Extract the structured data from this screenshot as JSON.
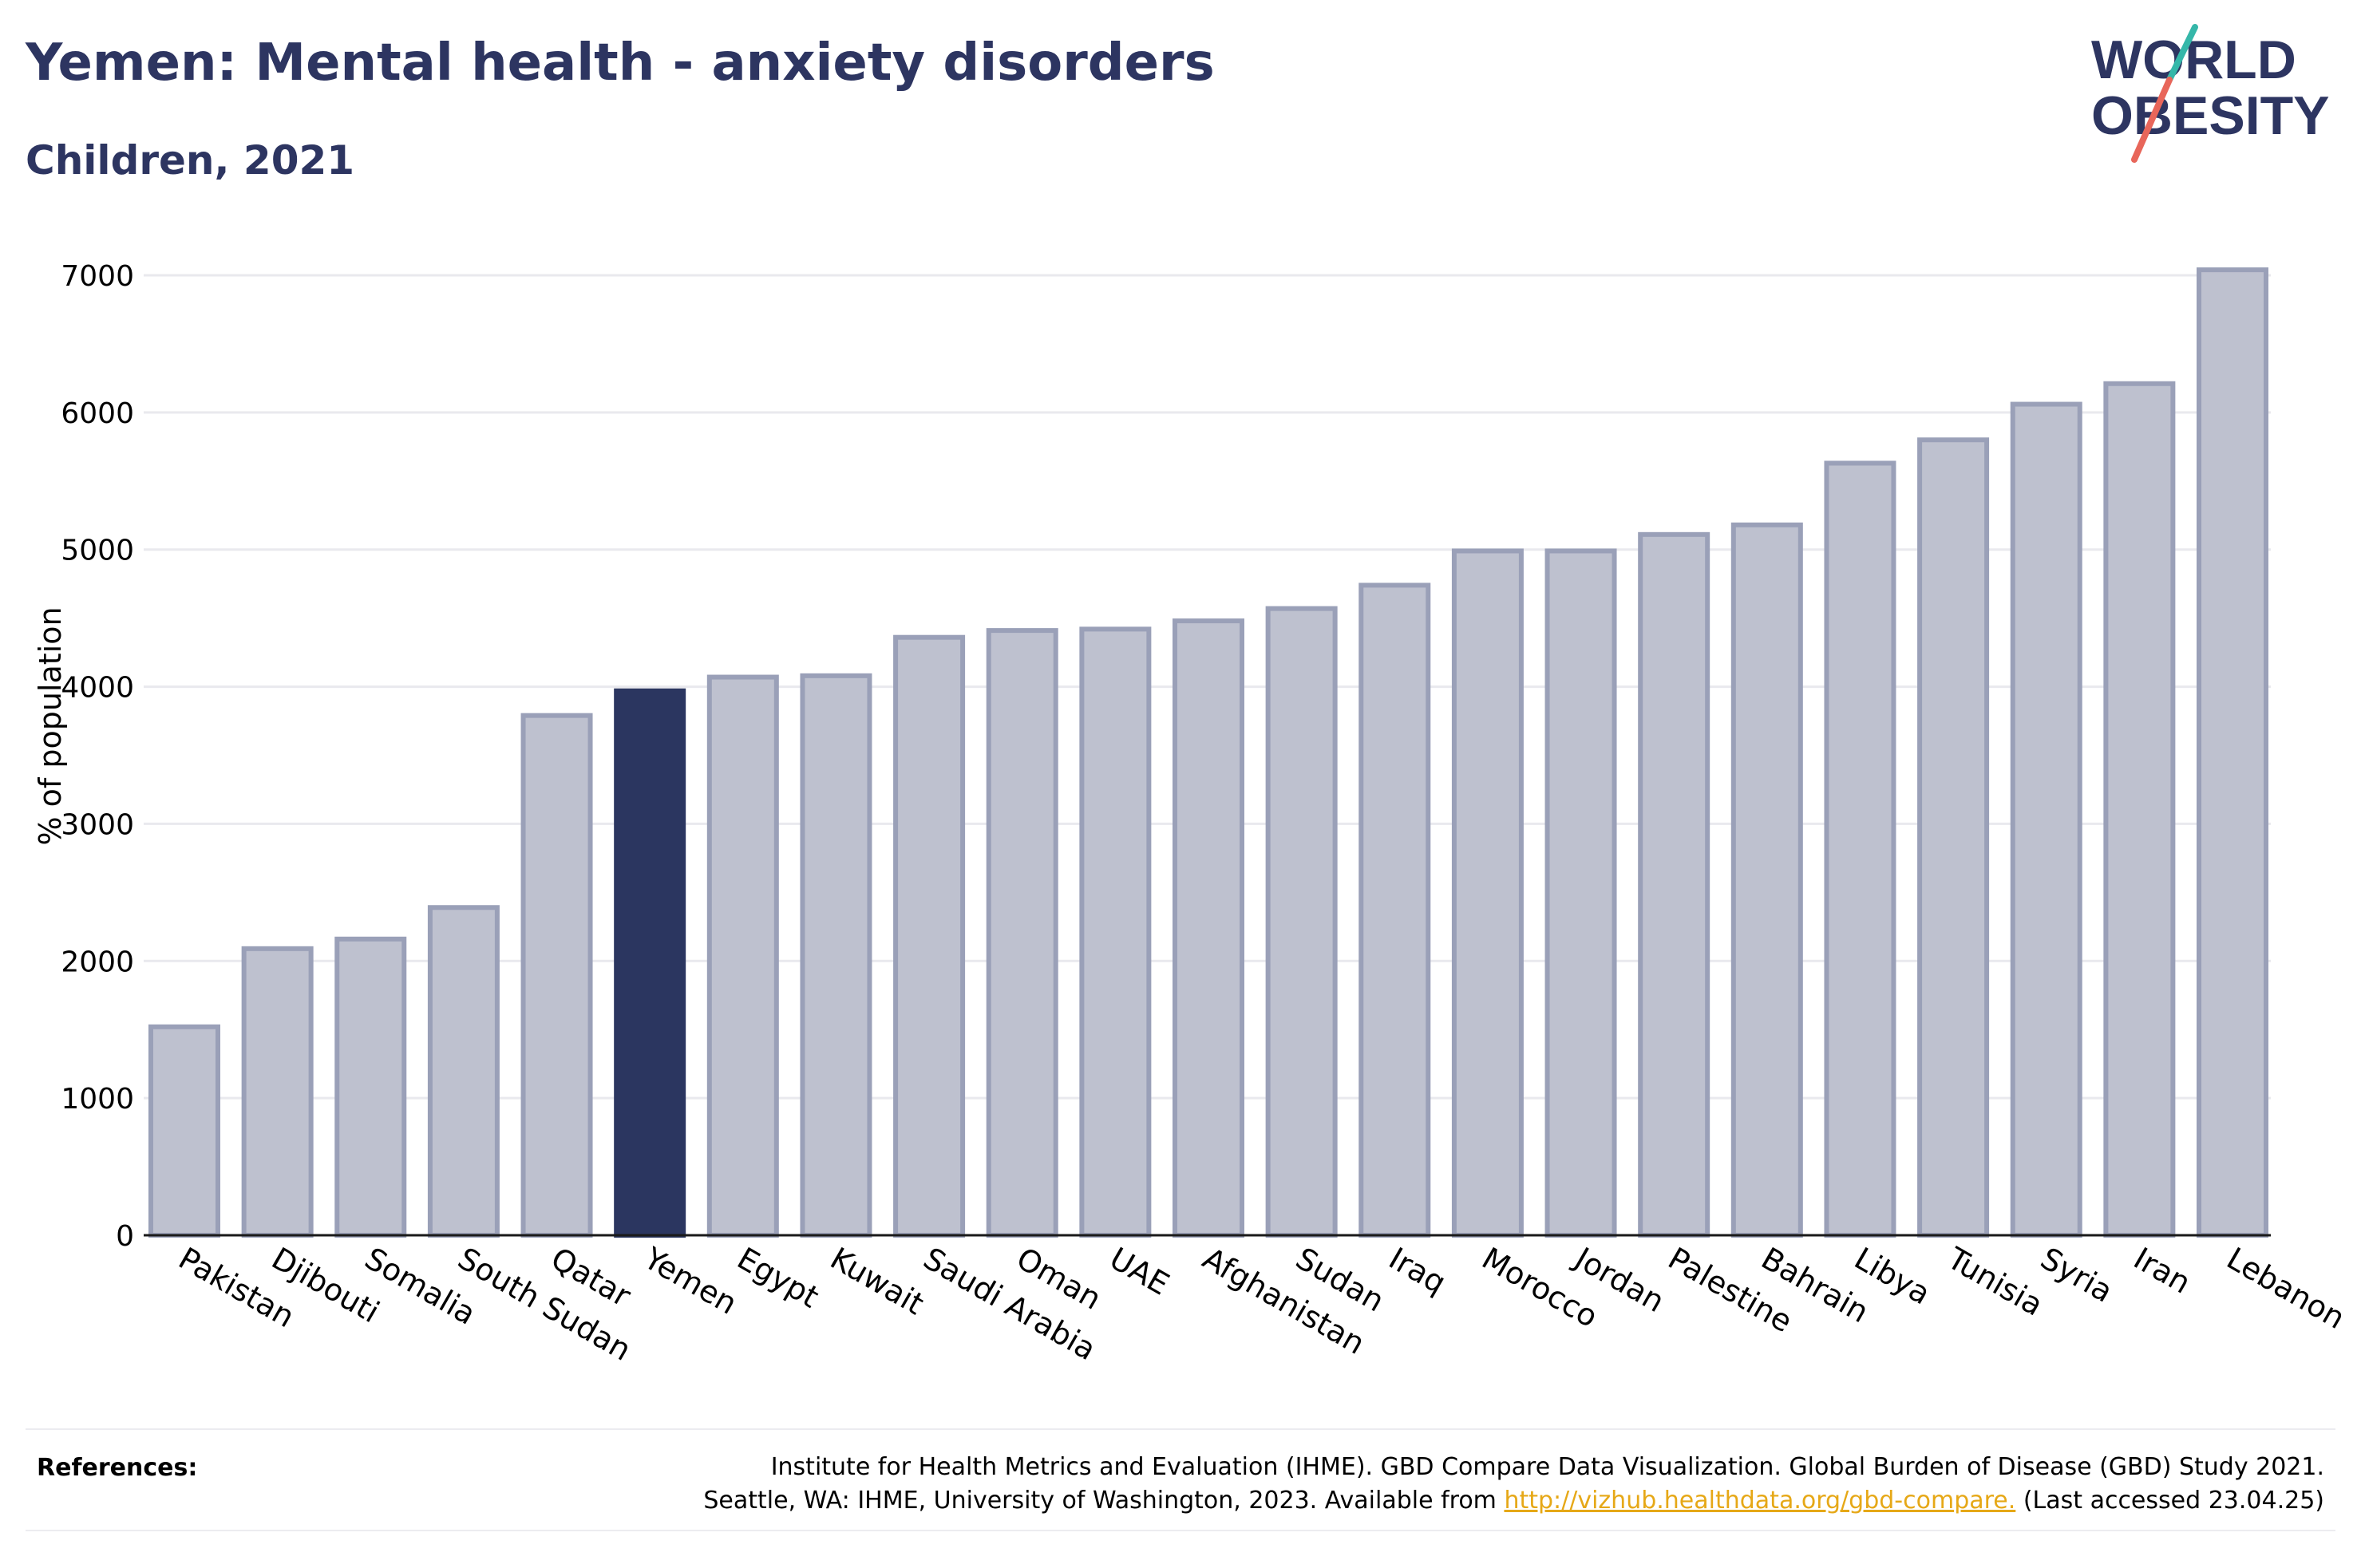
{
  "header": {
    "title": "Yemen: Mental health - anxiety disorders",
    "subtitle": "Children, 2021"
  },
  "logo": {
    "line1": "WORLD",
    "line2": "OBESITY"
  },
  "references": {
    "label": "References:",
    "line1": "Institute for Health Metrics and Evaluation (IHME). GBD Compare Data Visualization. Global Burden of Disease (GBD) Study 2021.",
    "line2_prefix": "Seattle, WA: IHME, University of Washington, 2023. Available from ",
    "link": "http://vizhub.healthdata.org/gbd-compare.",
    "line2_suffix": " (Last accessed 23.04.25)"
  },
  "colors": {
    "highlight": "#2b3660",
    "bar_fill": "#bec1cf",
    "bar_stroke": "#9aa0b8",
    "grid": "#e9e9ee",
    "text": "#2d3561",
    "link": "#e6a817"
  },
  "chart_data": {
    "type": "bar",
    "ylabel": "% of population",
    "ylim": [
      0,
      7000
    ],
    "yticks": [
      0,
      1000,
      2000,
      3000,
      4000,
      5000,
      6000,
      7000
    ],
    "grid": true,
    "highlight": "Yemen",
    "categories": [
      "Pakistan",
      "Djibouti",
      "Somalia",
      "South Sudan",
      "Qatar",
      "Yemen",
      "Egypt",
      "Kuwait",
      "Saudi Arabia",
      "Oman",
      "UAE",
      "Afghanistan",
      "Sudan",
      "Iraq",
      "Morocco",
      "Jordan",
      "Palestine",
      "Bahrain",
      "Libya",
      "Tunisia",
      "Syria",
      "Iran",
      "Lebanon"
    ],
    "values": [
      1520,
      2090,
      2160,
      2390,
      3790,
      3970,
      4070,
      4080,
      4360,
      4410,
      4420,
      4480,
      4570,
      4740,
      4990,
      4990,
      5110,
      5180,
      5630,
      5800,
      6060,
      6210,
      7040
    ]
  }
}
